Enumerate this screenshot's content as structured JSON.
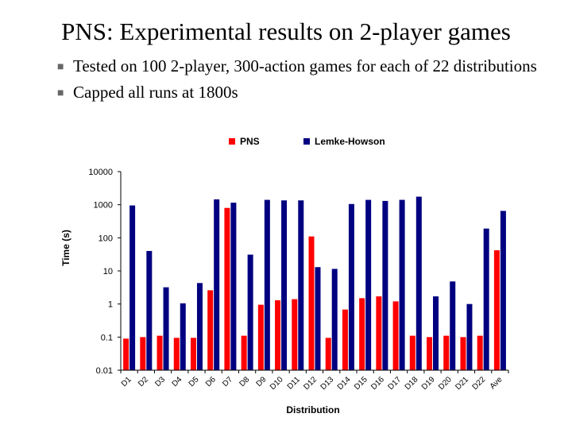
{
  "slide": {
    "title": "PNS: Experimental results on 2-player games",
    "bullets": [
      "Tested on 100 2-player, 300-action games for each of 22 distributions",
      "Capped all runs at 1800s"
    ],
    "bullet_icon": "square-bullet-icon"
  },
  "colors": {
    "pns": "#ff0000",
    "lemke_howson": "#000080",
    "axis": "#000000",
    "bullet": "#666666"
  },
  "chart_data": {
    "type": "bar",
    "scale": "log",
    "xlabel": "Distribution",
    "ylabel": "Time (s)",
    "ylim": [
      0.01,
      10000
    ],
    "yticks": [
      {
        "value": 10000,
        "label": "10000"
      },
      {
        "value": 1000,
        "label": "1000"
      },
      {
        "value": 100,
        "label": "100"
      },
      {
        "value": 10,
        "label": "10"
      },
      {
        "value": 1,
        "label": "1"
      },
      {
        "value": 0.1,
        "label": "0.1"
      },
      {
        "value": 0.01,
        "label": "0.01"
      }
    ],
    "grid": false,
    "legend": "top",
    "categories": [
      "D1",
      "D2",
      "D3",
      "D4",
      "D5",
      "D6",
      "D7",
      "D8",
      "D9",
      "D10",
      "D11",
      "D12",
      "D13",
      "D14",
      "D15",
      "D16",
      "D17",
      "D18",
      "D19",
      "D20",
      "D21",
      "D22",
      "Ave"
    ],
    "series": [
      {
        "name": "PNS",
        "color": "#ff0000",
        "values": [
          0.09,
          0.1,
          0.11,
          0.095,
          0.095,
          2.6,
          800,
          0.11,
          0.95,
          1.3,
          1.4,
          110,
          0.095,
          0.68,
          1.5,
          1.7,
          1.2,
          0.11,
          0.1,
          0.11,
          0.1,
          0.11,
          42
        ]
      },
      {
        "name": "Lemke-Howson",
        "color": "#000080",
        "values": [
          950,
          40,
          3.2,
          1.05,
          4.3,
          1450,
          1150,
          31,
          1400,
          1350,
          1350,
          13,
          11.5,
          1050,
          1400,
          1300,
          1400,
          1750,
          1.7,
          4.8,
          1.0,
          190,
          650
        ]
      }
    ]
  }
}
